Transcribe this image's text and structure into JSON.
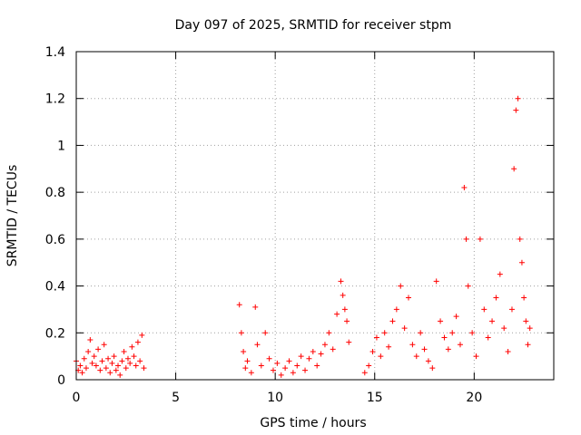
{
  "chart_data": {
    "type": "scatter",
    "title": "Day 097 of 2025, SRMTID for receiver stpm",
    "xlabel": "GPS time / hours",
    "ylabel": "SRMTID / TECUs",
    "xlim": [
      0,
      24
    ],
    "ylim": [
      0,
      1.4
    ],
    "grid": true,
    "marker": "+",
    "colors": {
      "series": "#ff0000",
      "grid": "#a0a0a0",
      "axis": "#000000"
    },
    "x_ticks": [
      {
        "value": 0,
        "label": "0"
      },
      {
        "value": 5,
        "label": "5"
      },
      {
        "value": 10,
        "label": "10"
      },
      {
        "value": 15,
        "label": "15"
      },
      {
        "value": 20,
        "label": "20"
      }
    ],
    "y_ticks": [
      {
        "value": 0,
        "label": "0"
      },
      {
        "value": 0.2,
        "label": "0.2"
      },
      {
        "value": 0.4,
        "label": "0.4"
      },
      {
        "value": 0.6,
        "label": "0.6"
      },
      {
        "value": 0.8,
        "label": "0.8"
      },
      {
        "value": 1.0,
        "label": "1"
      },
      {
        "value": 1.2,
        "label": "1.2"
      },
      {
        "value": 1.4,
        "label": "1.4"
      }
    ],
    "series": [
      {
        "name": "SRMTID",
        "points": [
          [
            0.0,
            0.08
          ],
          [
            0.1,
            0.04
          ],
          [
            0.2,
            0.06
          ],
          [
            0.3,
            0.03
          ],
          [
            0.4,
            0.09
          ],
          [
            0.5,
            0.05
          ],
          [
            0.6,
            0.12
          ],
          [
            0.7,
            0.17
          ],
          [
            0.8,
            0.07
          ],
          [
            0.9,
            0.1
          ],
          [
            1.0,
            0.06
          ],
          [
            1.1,
            0.13
          ],
          [
            1.2,
            0.04
          ],
          [
            1.3,
            0.08
          ],
          [
            1.4,
            0.15
          ],
          [
            1.5,
            0.05
          ],
          [
            1.6,
            0.09
          ],
          [
            1.7,
            0.03
          ],
          [
            1.8,
            0.07
          ],
          [
            1.9,
            0.1
          ],
          [
            2.0,
            0.04
          ],
          [
            2.1,
            0.06
          ],
          [
            2.2,
            0.02
          ],
          [
            2.3,
            0.08
          ],
          [
            2.4,
            0.12
          ],
          [
            2.5,
            0.05
          ],
          [
            2.6,
            0.09
          ],
          [
            2.7,
            0.07
          ],
          [
            2.8,
            0.14
          ],
          [
            2.9,
            0.1
          ],
          [
            3.0,
            0.06
          ],
          [
            3.1,
            0.16
          ],
          [
            3.2,
            0.08
          ],
          [
            3.3,
            0.19
          ],
          [
            3.4,
            0.05
          ],
          [
            8.2,
            0.32
          ],
          [
            8.3,
            0.2
          ],
          [
            8.4,
            0.12
          ],
          [
            8.5,
            0.05
          ],
          [
            8.6,
            0.08
          ],
          [
            8.8,
            0.03
          ],
          [
            9.0,
            0.31
          ],
          [
            9.1,
            0.15
          ],
          [
            9.3,
            0.06
          ],
          [
            9.5,
            0.2
          ],
          [
            9.7,
            0.09
          ],
          [
            9.9,
            0.04
          ],
          [
            10.1,
            0.07
          ],
          [
            10.3,
            0.02
          ],
          [
            10.5,
            0.05
          ],
          [
            10.7,
            0.08
          ],
          [
            10.9,
            0.03
          ],
          [
            11.1,
            0.06
          ],
          [
            11.3,
            0.1
          ],
          [
            11.5,
            0.04
          ],
          [
            11.7,
            0.09
          ],
          [
            11.9,
            0.12
          ],
          [
            12.1,
            0.06
          ],
          [
            12.3,
            0.11
          ],
          [
            12.5,
            0.15
          ],
          [
            12.7,
            0.2
          ],
          [
            12.9,
            0.13
          ],
          [
            13.1,
            0.28
          ],
          [
            13.3,
            0.42
          ],
          [
            13.4,
            0.36
          ],
          [
            13.5,
            0.3
          ],
          [
            13.6,
            0.25
          ],
          [
            13.7,
            0.16
          ],
          [
            14.5,
            0.03
          ],
          [
            14.7,
            0.06
          ],
          [
            14.9,
            0.12
          ],
          [
            15.1,
            0.18
          ],
          [
            15.3,
            0.1
          ],
          [
            15.5,
            0.2
          ],
          [
            15.7,
            0.14
          ],
          [
            15.9,
            0.25
          ],
          [
            16.1,
            0.3
          ],
          [
            16.3,
            0.4
          ],
          [
            16.5,
            0.22
          ],
          [
            16.7,
            0.35
          ],
          [
            16.9,
            0.15
          ],
          [
            17.1,
            0.1
          ],
          [
            17.3,
            0.2
          ],
          [
            17.5,
            0.13
          ],
          [
            17.7,
            0.08
          ],
          [
            17.9,
            0.05
          ],
          [
            18.1,
            0.42
          ],
          [
            18.3,
            0.25
          ],
          [
            18.5,
            0.18
          ],
          [
            18.7,
            0.13
          ],
          [
            18.9,
            0.2
          ],
          [
            19.1,
            0.27
          ],
          [
            19.3,
            0.15
          ],
          [
            19.5,
            0.82
          ],
          [
            19.6,
            0.6
          ],
          [
            19.7,
            0.4
          ],
          [
            19.9,
            0.2
          ],
          [
            20.1,
            0.1
          ],
          [
            20.3,
            0.6
          ],
          [
            20.5,
            0.3
          ],
          [
            20.7,
            0.18
          ],
          [
            20.9,
            0.25
          ],
          [
            21.1,
            0.35
          ],
          [
            21.3,
            0.45
          ],
          [
            21.5,
            0.22
          ],
          [
            21.7,
            0.12
          ],
          [
            21.9,
            0.3
          ],
          [
            22.0,
            0.9
          ],
          [
            22.1,
            1.15
          ],
          [
            22.2,
            1.2
          ],
          [
            22.3,
            0.6
          ],
          [
            22.4,
            0.5
          ],
          [
            22.5,
            0.35
          ],
          [
            22.6,
            0.25
          ],
          [
            22.7,
            0.15
          ],
          [
            22.8,
            0.22
          ]
        ]
      }
    ]
  }
}
